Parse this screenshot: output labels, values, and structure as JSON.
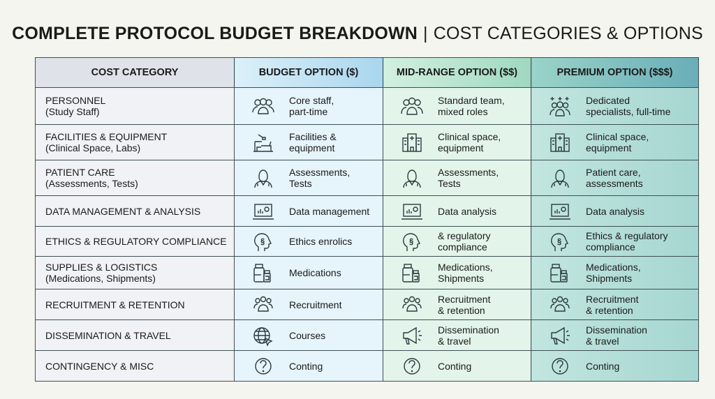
{
  "title": {
    "bold": "COMPLETE PROTOCOL BUDGET BREAKDOWN",
    "separator": "|",
    "subtitle": "COST CATEGORIES & OPTIONS"
  },
  "headers": [
    "COST CATEGORY",
    "BUDGET OPTION ($)",
    "MID-RANGE OPTION ($$)",
    "PREMIUM OPTION ($$$)"
  ],
  "rows": [
    {
      "cat": "PERSONNEL",
      "cat2": "(Study Staff)",
      "cells": [
        {
          "icon": "staff-icon",
          "text": "Core staff,",
          "text2": "part-time"
        },
        {
          "icon": "team-icon",
          "text": "Standard team,",
          "text2": "mixed roles"
        },
        {
          "icon": "specialists-icon",
          "text": "Dedicated",
          "text2": "specialists, full-time"
        }
      ]
    },
    {
      "cat": "FACILITIES & EQUIPMENT",
      "cat2": "(Clinical Space, Labs)",
      "cells": [
        {
          "icon": "lab-desk-icon",
          "text": "Facilities &",
          "text2": "equipment"
        },
        {
          "icon": "hospital-icon",
          "text": "Clinical space,",
          "text2": "equipment"
        },
        {
          "icon": "hospital-icon",
          "text": "Clinical space,",
          "text2": "equipment"
        }
      ]
    },
    {
      "cat": "PATIENT CARE",
      "cat2": "(Assessments, Tests)",
      "cells": [
        {
          "icon": "doctor-icon",
          "text": "Assessments,",
          "text2": "Tests"
        },
        {
          "icon": "doctor-icon",
          "text": "Assessments,",
          "text2": "Tests"
        },
        {
          "icon": "doctor-icon",
          "text": "Patient care,",
          "text2": "assessments"
        }
      ]
    },
    {
      "cat": "DATA MANAGEMENT & ANALYSIS",
      "cat2": "",
      "cells": [
        {
          "icon": "laptop-chart-icon",
          "text": "Data management",
          "text2": ""
        },
        {
          "icon": "laptop-chart-icon",
          "text": "Data analysis",
          "text2": ""
        },
        {
          "icon": "laptop-chart-icon",
          "text": "Data analysis",
          "text2": ""
        }
      ]
    },
    {
      "cat": "ETHICS & REGULATORY COMPLIANCE",
      "cat2": "",
      "cells": [
        {
          "icon": "head-section-icon",
          "text": "Ethics enrolics",
          "text2": ""
        },
        {
          "icon": "head-section-icon",
          "text": "& regulatory",
          "text2": "compliance"
        },
        {
          "icon": "head-section-icon",
          "text": "Ethics & regulatory",
          "text2": "compliance"
        }
      ]
    },
    {
      "cat": "SUPPLIES & LOGISTICS",
      "cat2": "(Medications, Shipments)",
      "cells": [
        {
          "icon": "medication-bottles-icon",
          "text": "Medications",
          "text2": ""
        },
        {
          "icon": "medication-bottles-icon",
          "text": "Medications,",
          "text2": "Shipments"
        },
        {
          "icon": "medication-bottles-icon",
          "text": "Medications,",
          "text2": "Shipments"
        }
      ]
    },
    {
      "cat": "RECRUITMENT & RETENTION",
      "cat2": "",
      "cells": [
        {
          "icon": "group-icon",
          "text": "Recruitment",
          "text2": ""
        },
        {
          "icon": "group-icon",
          "text": "Recruitment",
          "text2": "& retention"
        },
        {
          "icon": "group-icon",
          "text": "Recruitment",
          "text2": "& retention"
        }
      ]
    },
    {
      "cat": "DISSEMINATION & TRAVEL",
      "cat2": "",
      "cells": [
        {
          "icon": "globe-cursor-icon",
          "text": "Courses",
          "text2": ""
        },
        {
          "icon": "megaphone-icon",
          "text": "Dissemination",
          "text2": "& travel"
        },
        {
          "icon": "megaphone-icon",
          "text": "Dissemination",
          "text2": "& travel"
        }
      ]
    },
    {
      "cat": "CONTINGENCY & MISC",
      "cat2": "",
      "cells": [
        {
          "icon": "question-icon",
          "text": "Conting",
          "text2": ""
        },
        {
          "icon": "question-icon",
          "text": "Conting",
          "text2": ""
        },
        {
          "icon": "question-icon",
          "text": "Conting",
          "text2": ""
        }
      ]
    }
  ]
}
